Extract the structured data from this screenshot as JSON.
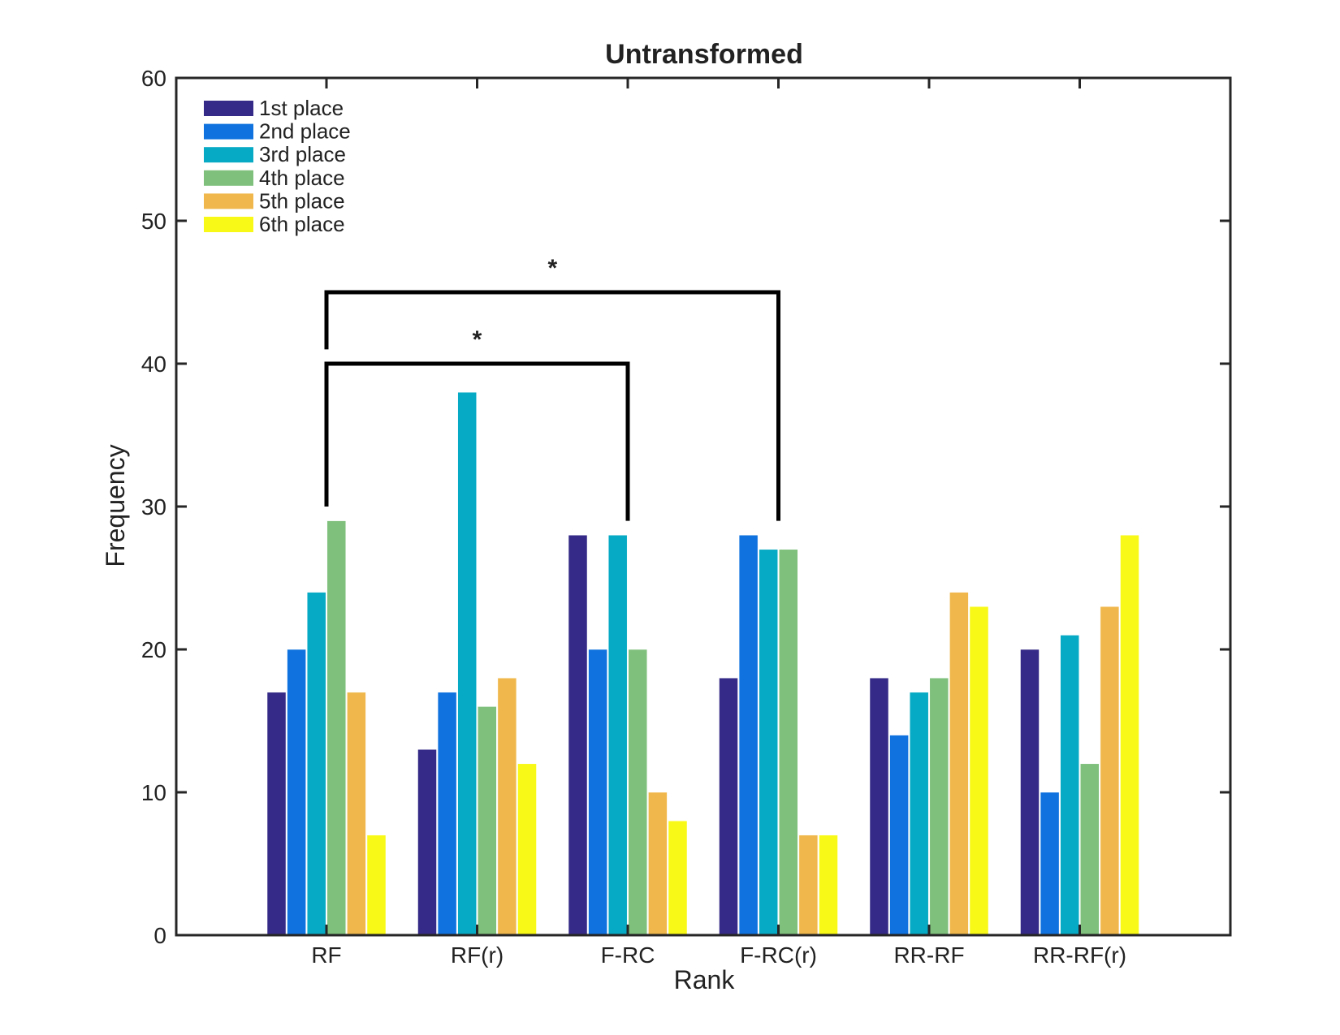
{
  "chart_data": {
    "type": "bar",
    "title": "Untransformed",
    "xlabel": "Rank",
    "ylabel": "Frequency",
    "ylim": [
      0,
      60
    ],
    "yticks": [
      0,
      10,
      20,
      30,
      40,
      50,
      60
    ],
    "grid": false,
    "legend_position": "top-left",
    "categories": [
      "RF",
      "RF(r)",
      "F-RC",
      "F-RC(r)",
      "RR-RF",
      "RR-RF(r)"
    ],
    "series": [
      {
        "name": "1st place",
        "color": "#352a87",
        "values": [
          17,
          13,
          28,
          18,
          18,
          20
        ]
      },
      {
        "name": "2nd place",
        "color": "#0f72df",
        "values": [
          20,
          17,
          20,
          28,
          14,
          10
        ]
      },
      {
        "name": "3rd place",
        "color": "#07aac4",
        "values": [
          24,
          38,
          28,
          27,
          17,
          21
        ]
      },
      {
        "name": "4th place",
        "color": "#7fc07c",
        "values": [
          29,
          16,
          20,
          27,
          18,
          12
        ]
      },
      {
        "name": "5th place",
        "color": "#f0b84c",
        "values": [
          17,
          18,
          10,
          7,
          24,
          23
        ]
      },
      {
        "name": "6th place",
        "color": "#f9f917",
        "values": [
          7,
          12,
          8,
          7,
          23,
          28
        ]
      }
    ],
    "annotations": [
      {
        "type": "significance-bracket",
        "from": "RF",
        "to": "F-RC",
        "label": "*",
        "y": 40,
        "left_end": 30,
        "right_end": 29
      },
      {
        "type": "significance-bracket",
        "from": "RF",
        "to": "F-RC(r)",
        "label": "*",
        "y": 45,
        "left_end": 41,
        "right_end": 29
      }
    ]
  }
}
